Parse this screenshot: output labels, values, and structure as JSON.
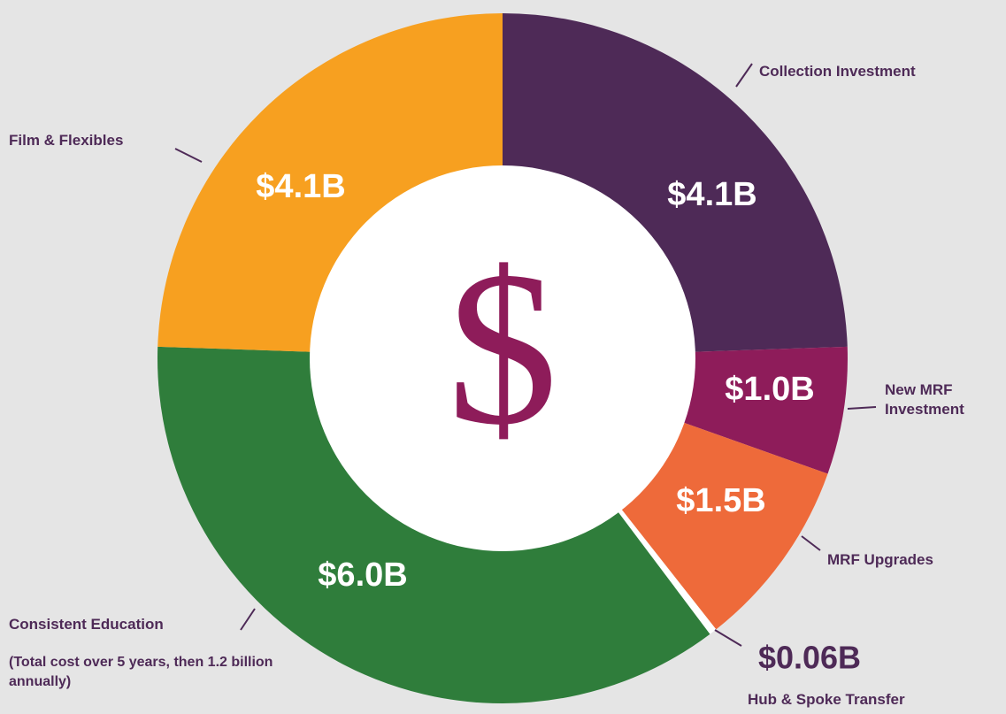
{
  "chart_data": {
    "type": "donut",
    "categories": [
      "Collection Investment",
      "New MRF Investment",
      "MRF Upgrades",
      "Hub & Spoke Transfer",
      "Consistent Education",
      "Film & Flexibles"
    ],
    "values": [
      4.1,
      1.0,
      1.5,
      0.06,
      6.0,
      4.1
    ],
    "value_labels": [
      "$4.1B",
      "$1.0B",
      "$1.5B",
      "$0.06B",
      "$6.0B",
      "$4.1B"
    ],
    "colors": [
      "#4e2a57",
      "#8e1c5a",
      "#ee6a3a",
      "#ffffff",
      "#2f7d3b",
      "#f7a020"
    ],
    "center_symbol": "$",
    "annotation": "(Total cost over 5 years, then 1.2 billion annually)"
  }
}
